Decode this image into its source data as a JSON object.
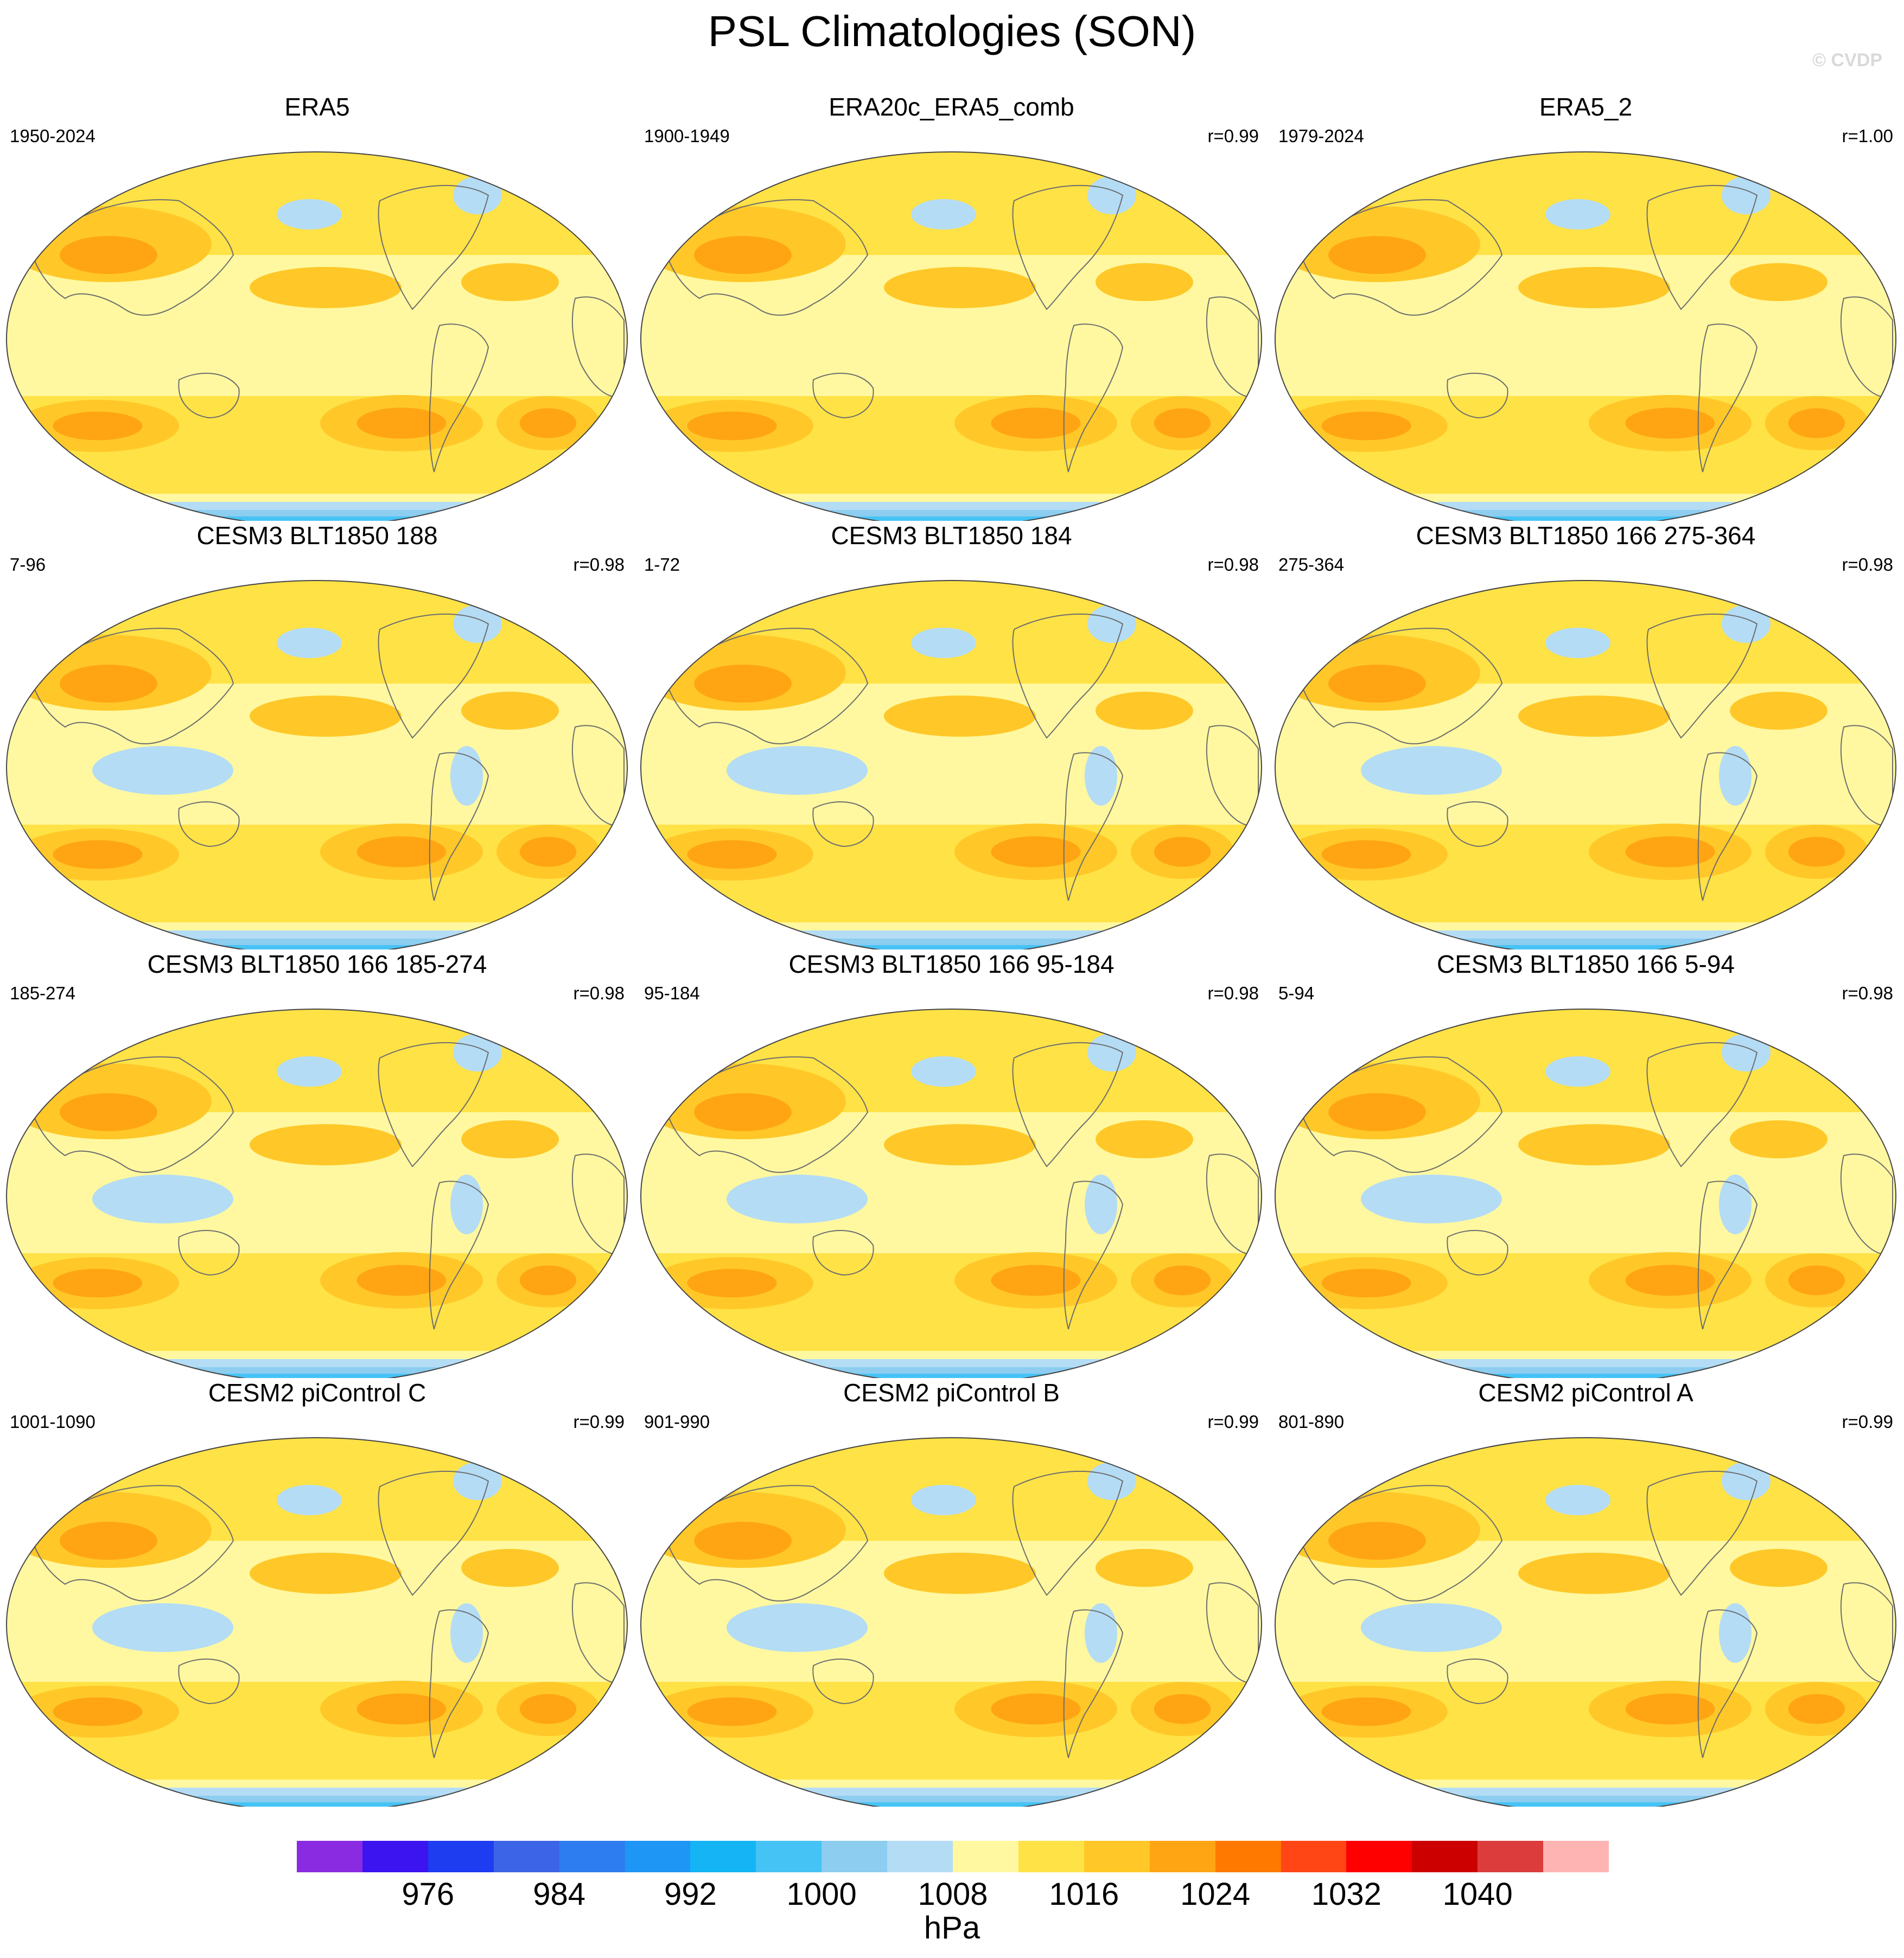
{
  "figure": {
    "title": "PSL Climatologies (SON)",
    "watermark": "© CVDP"
  },
  "panels": [
    {
      "title": "ERA5",
      "period": "1950-2024",
      "r": "",
      "antarctic": "obs"
    },
    {
      "title": "ERA20c_ERA5_comb",
      "period": "1900-1949",
      "r": "r=0.99",
      "antarctic": "obs"
    },
    {
      "title": "ERA5_2",
      "period": "1979-2024",
      "r": "r=1.00",
      "antarctic": "obs"
    },
    {
      "title": "CESM3 BLT1850 188",
      "period": "7-96",
      "r": "r=0.98",
      "antarctic": "cesm3"
    },
    {
      "title": "CESM3 BLT1850 184",
      "period": "1-72",
      "r": "r=0.98",
      "antarctic": "cesm3"
    },
    {
      "title": "CESM3 BLT1850 166 275-364",
      "period": "275-364",
      "r": "r=0.98",
      "antarctic": "cesm3"
    },
    {
      "title": "CESM3 BLT1850 166 185-274",
      "period": "185-274",
      "r": "r=0.98",
      "antarctic": "cesm3"
    },
    {
      "title": "CESM3 BLT1850 166 95-184",
      "period": "95-184",
      "r": "r=0.98",
      "antarctic": "cesm3"
    },
    {
      "title": "CESM3 BLT1850 166 5-94",
      "period": "5-94",
      "r": "r=0.98",
      "antarctic": "cesm3"
    },
    {
      "title": "CESM2 piControl C",
      "period": "1001-1090",
      "r": "r=0.99",
      "antarctic": "cesm2"
    },
    {
      "title": "CESM2 piControl B",
      "period": "901-990",
      "r": "r=0.99",
      "antarctic": "cesm2"
    },
    {
      "title": "CESM2 piControl A",
      "period": "801-890",
      "r": "r=0.99",
      "antarctic": "cesm2"
    }
  ],
  "colorbar": {
    "units": "hPa",
    "colors": [
      "#8a2be2",
      "#3c14f0",
      "#1e3cf0",
      "#3c64e6",
      "#2d7df0",
      "#1e96f5",
      "#14b4f5",
      "#46c3f5",
      "#8ccdf0",
      "#b4dcf5",
      "#fff8a0",
      "#ffe246",
      "#ffc828",
      "#ffa514",
      "#ff7800",
      "#ff4614",
      "#ff0000",
      "#cd0000",
      "#dc3c3c",
      "#ffb4b4"
    ],
    "tick_labels": [
      "976",
      "984",
      "992",
      "1000",
      "1008",
      "1016",
      "1024",
      "1032",
      "1040"
    ]
  }
}
